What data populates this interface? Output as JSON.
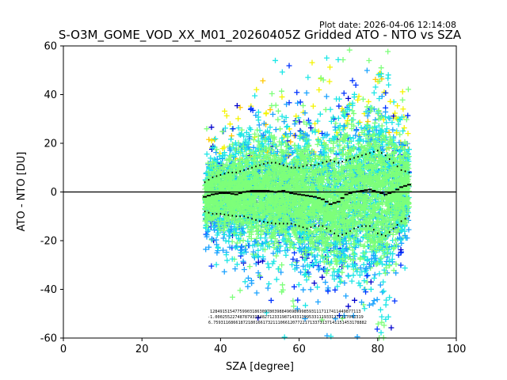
{
  "chart_data": {
    "type": "scatter",
    "title": "S-O3M_GOME_VOD_XX_M01_20260405Z Gridded ATO - NTO vs SZA",
    "plot_date": "Plot date: 2026-04-06 12:14:08",
    "xlabel": "SZA [degree]",
    "ylabel": "ATO - NTO [DU]",
    "xlim": [
      0,
      100
    ],
    "ylim": [
      -60,
      60
    ],
    "xticks": [
      0,
      20,
      40,
      60,
      80,
      100
    ],
    "yticks": [
      -60,
      -40,
      -20,
      0,
      20,
      40,
      60
    ],
    "zero_line": 0,
    "marker": "+",
    "colors": {
      "dense": "#7dff7a",
      "mid": "#1de6e6",
      "light_blue": "#1ca3ff",
      "blue": "#0033ff",
      "dark_blue": "#0000cc",
      "yellow": "#f4f400",
      "orange": "#ffc700",
      "mean_line": "#000000"
    },
    "sza_range": [
      36,
      88
    ],
    "mean_curve": {
      "x": [
        36,
        38,
        40,
        42,
        44,
        46,
        48,
        50,
        52,
        54,
        56,
        58,
        60,
        62,
        64,
        66,
        68,
        70,
        72,
        74,
        76,
        78,
        80,
        82,
        84,
        86,
        88
      ],
      "y": [
        -2,
        -1,
        -0.5,
        -0.5,
        -1,
        0,
        0.5,
        0.5,
        0.5,
        0,
        0.5,
        -0.5,
        -1,
        -1.5,
        -2,
        -3,
        -5,
        -4,
        -1,
        0,
        0.5,
        1,
        0,
        -1,
        0,
        2,
        3
      ]
    },
    "upper_sigma_curve": {
      "x": [
        36,
        38,
        40,
        42,
        44,
        46,
        48,
        50,
        52,
        54,
        56,
        58,
        60,
        62,
        64,
        66,
        68,
        70,
        72,
        74,
        76,
        78,
        80,
        82,
        84,
        86,
        88
      ],
      "y": [
        4,
        6,
        7,
        8,
        8,
        9,
        10,
        11,
        12,
        12,
        11,
        10,
        10,
        11,
        11,
        12,
        13,
        12,
        13,
        14,
        15,
        16,
        17,
        15,
        12,
        9,
        8
      ]
    },
    "lower_sigma_curve": {
      "x": [
        36,
        38,
        40,
        42,
        44,
        46,
        48,
        50,
        52,
        54,
        56,
        58,
        60,
        62,
        64,
        66,
        68,
        70,
        72,
        74,
        76,
        78,
        80,
        82,
        84,
        86,
        88
      ],
      "y": [
        -8,
        -9,
        -9,
        -9.5,
        -10,
        -10,
        -11,
        -12,
        -12.5,
        -13,
        -13,
        -13,
        -14,
        -15,
        -14,
        -14,
        -16,
        -18,
        -17,
        -15,
        -14,
        -14,
        -17,
        -18,
        -15,
        -12,
        -10
      ]
    },
    "stats_rows": [
      "1284915154775990318630978039884969899985931117117411449877113",
      "-1.000255227487879333482712331987143313995331119331277217041319",
      "6.75931168661872180166173211106612077221713373137141151453178882"
    ]
  }
}
